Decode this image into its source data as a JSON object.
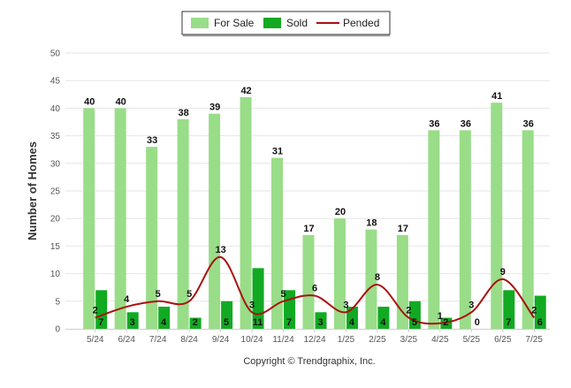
{
  "chart_data": {
    "type": "bar",
    "categories": [
      "5/24",
      "6/24",
      "7/24",
      "8/24",
      "9/24",
      "10/24",
      "11/24",
      "12/24",
      "1/25",
      "2/25",
      "3/25",
      "4/25",
      "5/25",
      "6/25",
      "7/25"
    ],
    "series": [
      {
        "name": "For Sale",
        "type": "bar",
        "color": "#99dd88",
        "values": [
          40,
          40,
          33,
          38,
          39,
          42,
          31,
          17,
          20,
          18,
          17,
          36,
          36,
          41,
          36
        ]
      },
      {
        "name": "Sold",
        "type": "bar",
        "color": "#11aa22",
        "values": [
          7,
          3,
          4,
          2,
          5,
          11,
          7,
          3,
          4,
          4,
          5,
          2,
          0,
          7,
          6
        ]
      },
      {
        "name": "Pended",
        "type": "line",
        "color": "#aa1111",
        "values": [
          2,
          4,
          5,
          5,
          13,
          3,
          5,
          6,
          3,
          8,
          2,
          1,
          3,
          9,
          2
        ]
      }
    ],
    "ylabel": "Number of Homes",
    "xlabel": "",
    "ylim": [
      0,
      50
    ],
    "yticks": [
      0,
      5,
      10,
      15,
      20,
      25,
      30,
      35,
      40,
      45,
      50
    ],
    "grid": true,
    "legend_position": "top-center"
  },
  "footer": {
    "copyright": "Copyright © Trendgraphix, Inc."
  }
}
